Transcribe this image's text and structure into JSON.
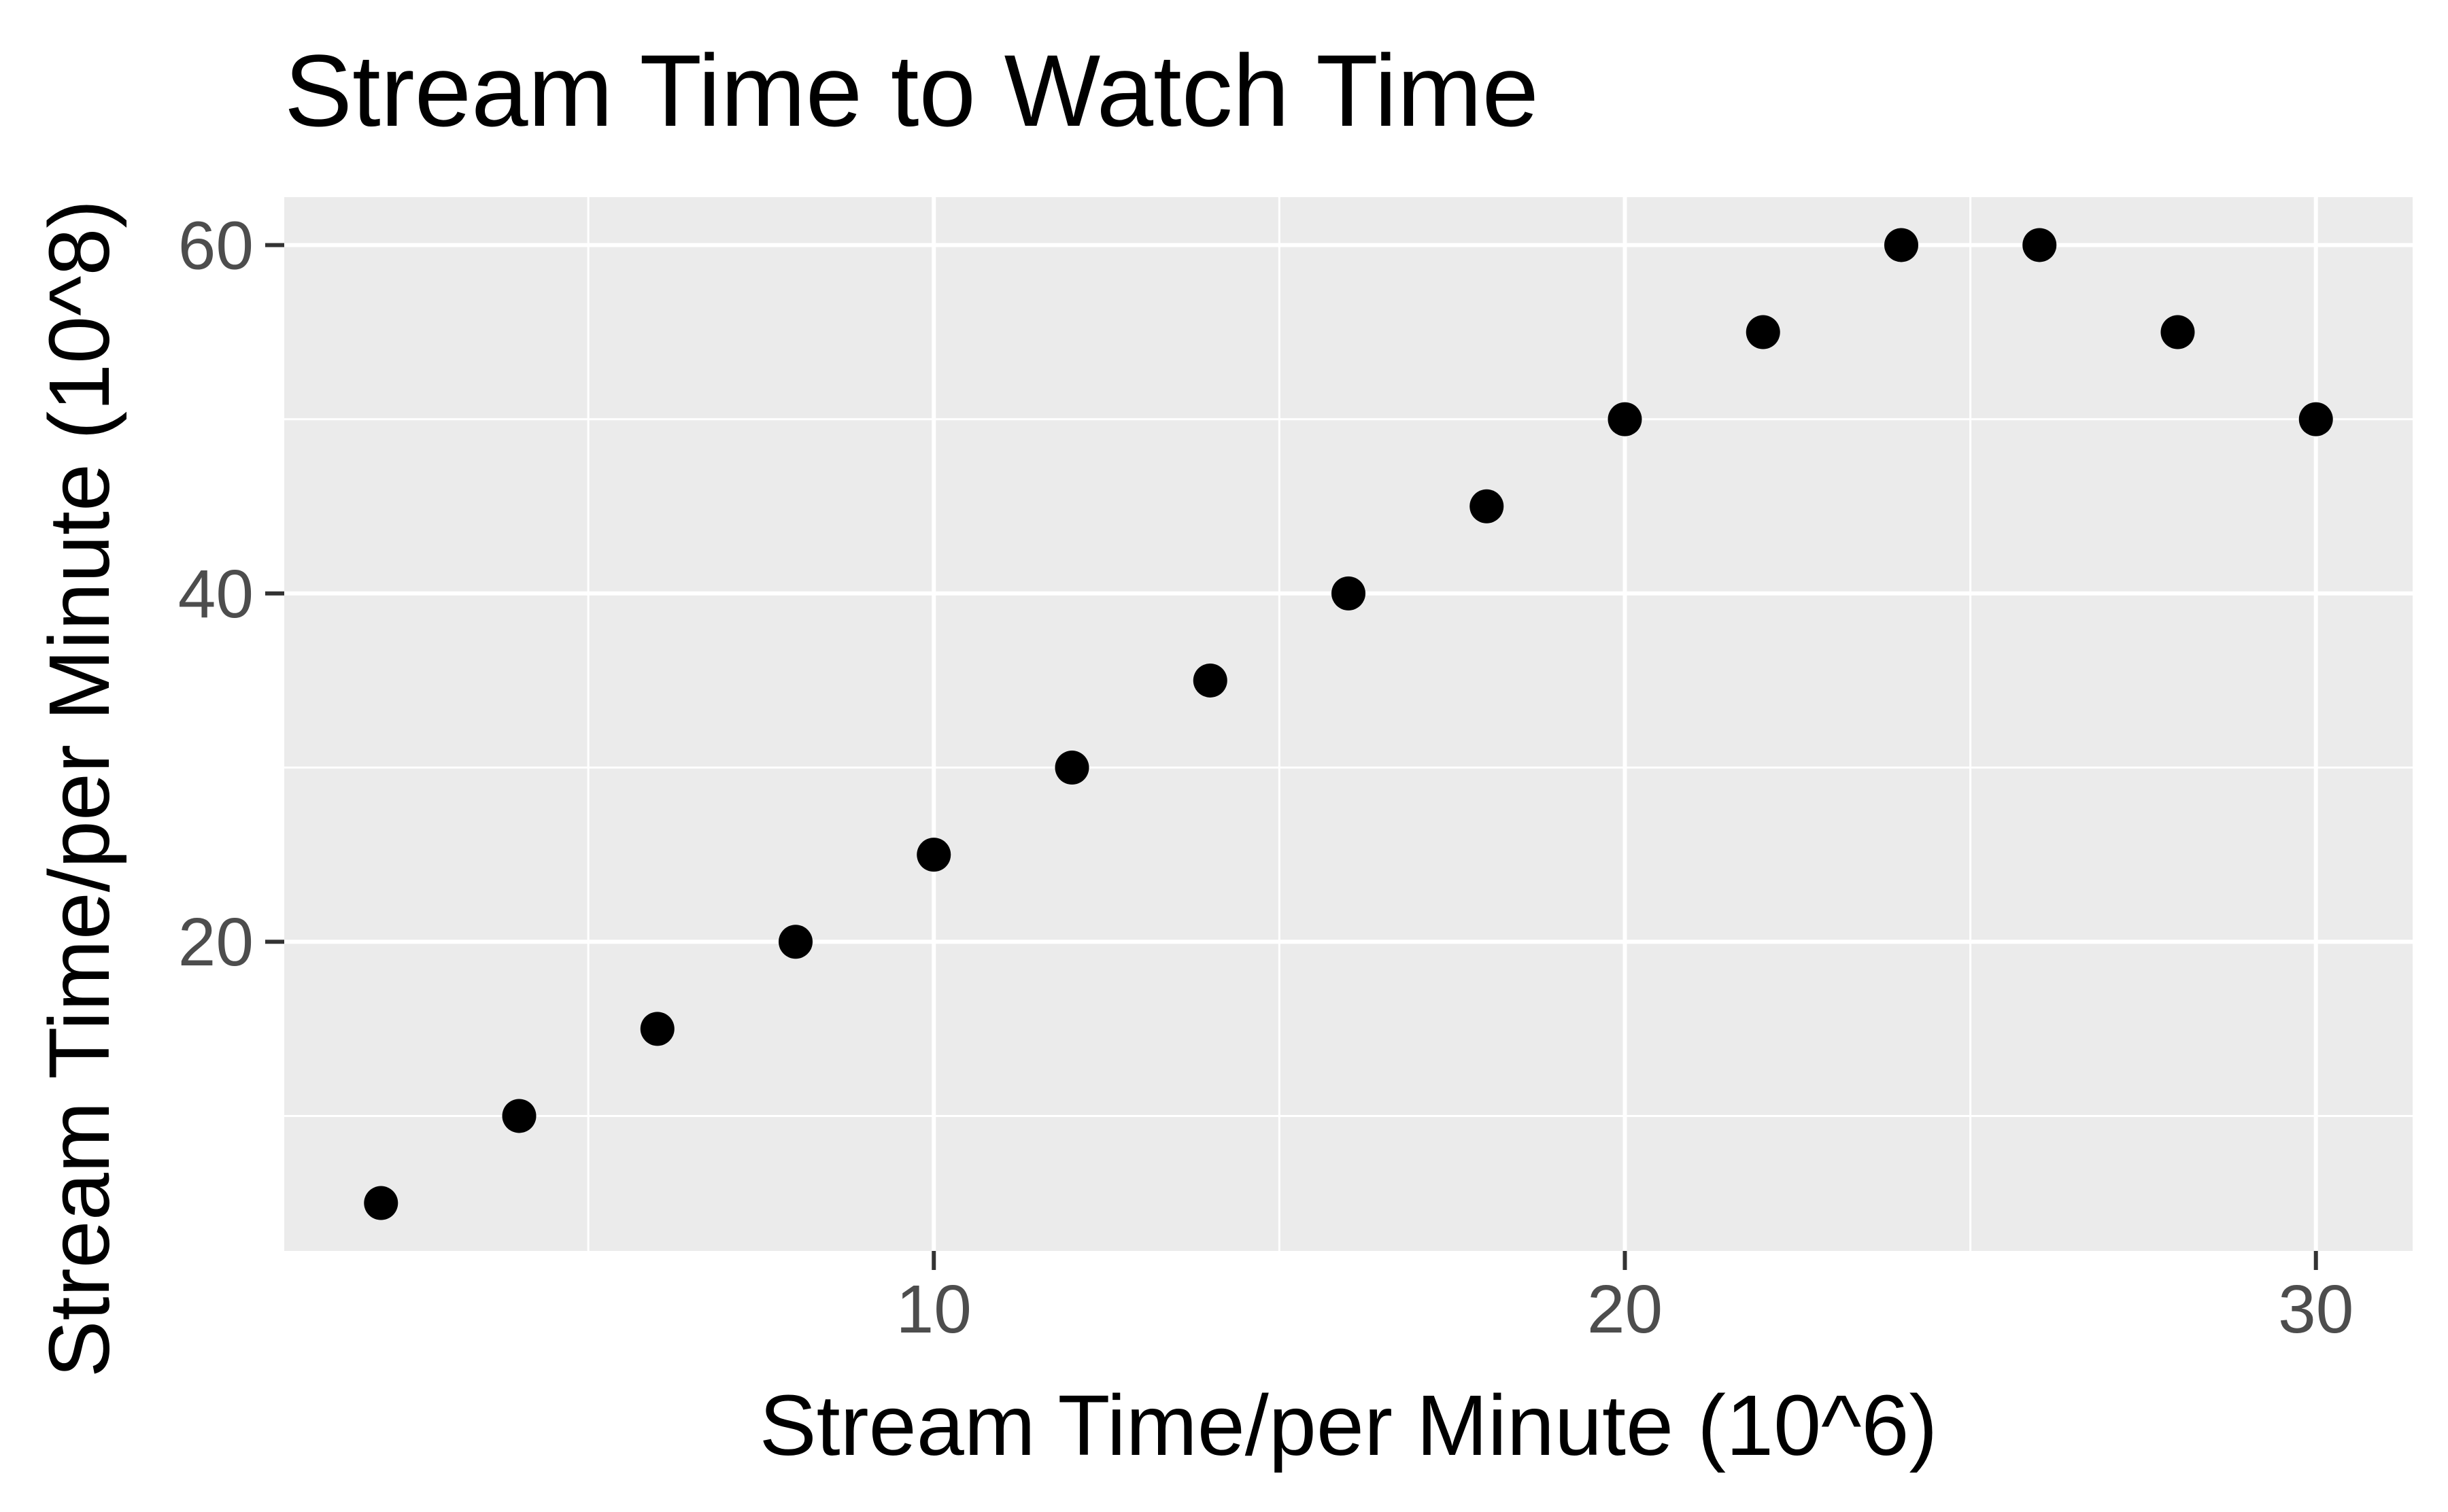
{
  "chart_data": {
    "type": "scatter",
    "title": "Stream Time to Watch Time",
    "xlabel": "Stream Time/per Minute (10^6)",
    "ylabel": "Stream Time/per Minute (10^8)",
    "xlim": [
      0.6,
      31.4
    ],
    "ylim": [
      2.25,
      62.75
    ],
    "x_ticks": [
      10,
      20,
      30
    ],
    "y_ticks": [
      20,
      40,
      60
    ],
    "x_minor": [
      5,
      15,
      25
    ],
    "y_minor": [
      10,
      30,
      50
    ],
    "grid": true,
    "legend": "none",
    "panel_color": "#ebebeb",
    "grid_color": "#ffffff",
    "point_color": "#000000",
    "x": [
      2,
      4,
      6,
      8,
      10,
      12,
      14,
      16,
      18,
      20,
      22,
      24,
      26,
      28,
      30
    ],
    "y": [
      5,
      10,
      15,
      20,
      25,
      30,
      35,
      40,
      45,
      50,
      55,
      60,
      60,
      55,
      50
    ]
  }
}
